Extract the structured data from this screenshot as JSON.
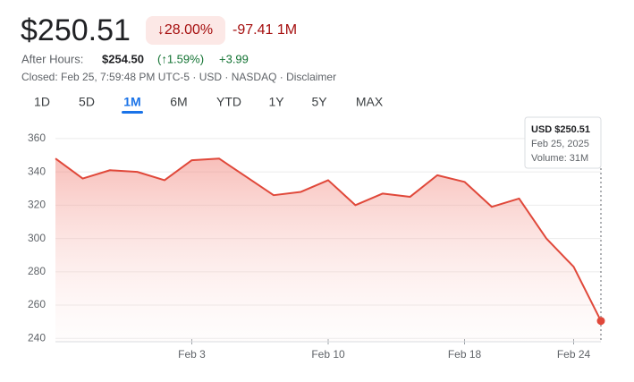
{
  "header": {
    "price": "$250.51",
    "change_percent": "↓28.00%",
    "change": "-97.41 1M",
    "after_hours_label": "After Hours:",
    "after_hours_price": "$254.50",
    "after_hours_percent": "(↑1.59%)",
    "after_hours_change": "+3.99",
    "closed_line": "Closed: Feb 25, 7:59:48 PM UTC-5 · USD · NASDAQ · Disclaimer"
  },
  "tabs": {
    "items": [
      "1D",
      "5D",
      "1M",
      "6M",
      "YTD",
      "1Y",
      "5Y",
      "MAX"
    ],
    "selected": 2
  },
  "tooltip": {
    "price": "USD $250.51",
    "date": "Feb 25, 2025",
    "volume": "Volume: 31M"
  },
  "chart_data": {
    "type": "line",
    "categories": [
      null,
      null,
      null,
      null,
      null,
      "Feb 3",
      null,
      null,
      null,
      null,
      "Feb 10",
      null,
      null,
      null,
      null,
      "Feb 18",
      null,
      null,
      null,
      "Feb 24",
      null
    ],
    "series": [
      {
        "color": "#e0483a",
        "values": [
          348,
          336,
          341,
          340,
          335,
          347,
          348,
          337,
          326,
          328,
          335,
          320,
          327,
          325,
          338,
          334,
          319,
          324,
          300,
          283,
          250.51
        ]
      }
    ],
    "ylim": [
      238,
      368
    ],
    "yticks": [
      240,
      260,
      280,
      300,
      320,
      340,
      360
    ],
    "grid": true
  }
}
